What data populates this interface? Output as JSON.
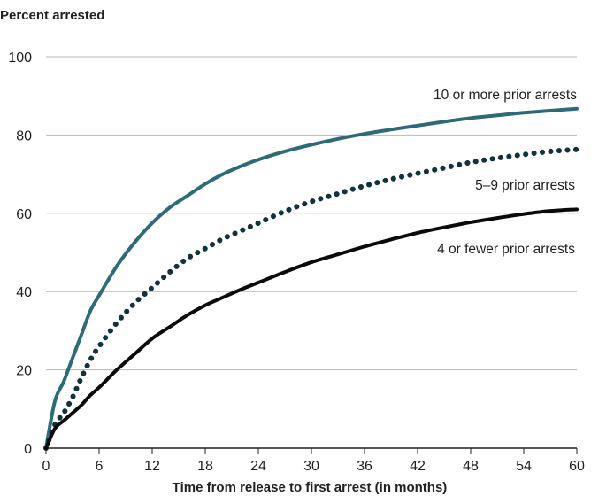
{
  "chart_data": {
    "type": "line",
    "ylabel": "Percent arrested",
    "xlabel": "Time from release to first arrest (in months)",
    "xlim": [
      0,
      60
    ],
    "ylim": [
      0,
      100
    ],
    "xticks": [
      0,
      6,
      12,
      18,
      24,
      30,
      36,
      42,
      48,
      54,
      60
    ],
    "yticks": [
      0,
      20,
      40,
      60,
      80,
      100
    ],
    "grid": "horizontal",
    "legend": "direct labels at line ends",
    "colors": {
      "ten_plus": "#2e6b78",
      "five_nine": "#12323f",
      "four_fewer": "#0a0a0a"
    },
    "x": [
      0,
      1,
      2,
      3,
      4,
      5,
      6,
      8,
      10,
      12,
      14,
      16,
      18,
      20,
      22,
      24,
      27,
      30,
      33,
      36,
      39,
      42,
      45,
      48,
      51,
      54,
      57,
      60
    ],
    "series": [
      {
        "name": "10 or more prior arrests",
        "style": "solid",
        "color_key": "ten_plus",
        "values": [
          0,
          12,
          17,
          23,
          29,
          35,
          39,
          46.5,
          52.5,
          57.5,
          61.5,
          64.5,
          67.5,
          70,
          72,
          73.7,
          75.8,
          77.5,
          79,
          80.3,
          81.4,
          82.4,
          83.4,
          84.3,
          85,
          85.7,
          86.2,
          86.7
        ]
      },
      {
        "name": "5–9 prior arrests",
        "style": "dotted",
        "color_key": "five_nine",
        "values": [
          0,
          6,
          9,
          13,
          18,
          22.5,
          26,
          32,
          37,
          41,
          45,
          48.5,
          51,
          53.5,
          55.5,
          57.5,
          60.5,
          63,
          65,
          67,
          68.7,
          70.2,
          71.6,
          73,
          74.1,
          75,
          75.8,
          76.3
        ]
      },
      {
        "name": "4 or fewer prior arrests",
        "style": "solid",
        "color_key": "four_fewer",
        "values": [
          0,
          5,
          7,
          9,
          11,
          13.5,
          15.5,
          20,
          24,
          28,
          31,
          34,
          36.5,
          38.5,
          40.5,
          42.3,
          45,
          47.5,
          49.5,
          51.5,
          53.3,
          55,
          56.4,
          57.7,
          58.8,
          59.8,
          60.6,
          61
        ]
      }
    ]
  }
}
